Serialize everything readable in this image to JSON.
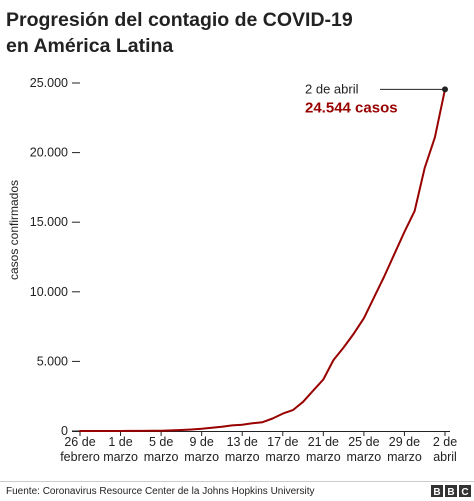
{
  "chart_data": {
    "type": "line",
    "title_lines": [
      "Progresión del contagio de COVID-19",
      "en América Latina"
    ],
    "ylabel": "casos confirmados",
    "ylim": [
      0,
      25000
    ],
    "y_ticks": [
      {
        "value": 0,
        "label": "0"
      },
      {
        "value": 5000,
        "label": "5.000"
      },
      {
        "value": 10000,
        "label": "10.000"
      },
      {
        "value": 15000,
        "label": "15.000"
      },
      {
        "value": 20000,
        "label": "20.000"
      },
      {
        "value": 25000,
        "label": "25.000"
      }
    ],
    "x_ticks": [
      {
        "day": 0,
        "label": [
          "26 de",
          "febrero"
        ]
      },
      {
        "day": 4,
        "label": [
          "1 de",
          "marzo"
        ]
      },
      {
        "day": 8,
        "label": [
          "5 de",
          "marzo"
        ]
      },
      {
        "day": 12,
        "label": [
          "9 de",
          "marzo"
        ]
      },
      {
        "day": 16,
        "label": [
          "13 de",
          "marzo"
        ]
      },
      {
        "day": 20,
        "label": [
          "17 de",
          "marzo"
        ]
      },
      {
        "day": 24,
        "label": [
          "21 de",
          "marzo"
        ]
      },
      {
        "day": 28,
        "label": [
          "25 de",
          "marzo"
        ]
      },
      {
        "day": 32,
        "label": [
          "29 de",
          "marzo"
        ]
      },
      {
        "day": 36,
        "label": [
          "2 de",
          "abril"
        ]
      }
    ],
    "grid": false,
    "series_color": "#990000",
    "series": [
      {
        "values": [
          1,
          1,
          1,
          2,
          3,
          6,
          8,
          15,
          25,
          45,
          70,
          110,
          160,
          230,
          300,
          400,
          450,
          550,
          630,
          900,
          1250,
          1500,
          2100,
          2900,
          3700,
          5100,
          6000,
          7000,
          8100,
          9600,
          11100,
          12700,
          14300,
          15800,
          18900,
          21100,
          24544
        ]
      }
    ],
    "annotation": {
      "day": 36,
      "value": 24544,
      "date": "2 de abril",
      "text": "24.544 casos"
    }
  },
  "footer": {
    "source": "Fuente: Coronavirus Resource Center de la Johns Hopkins University",
    "logo_letters": [
      "B",
      "B",
      "C"
    ]
  }
}
